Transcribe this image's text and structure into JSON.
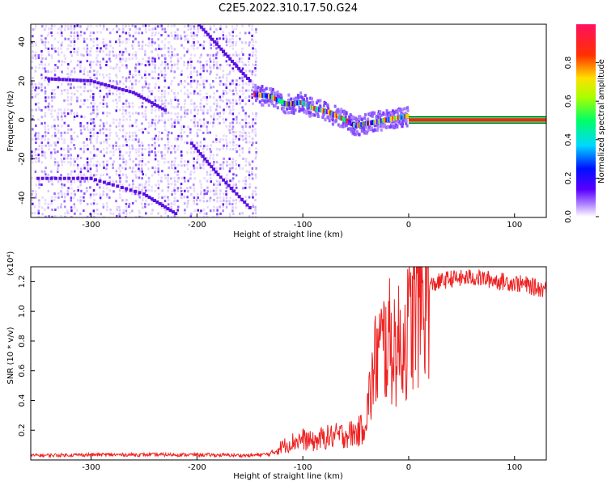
{
  "title": "C2E5.2022.310.17.50.G24",
  "chart_data": [
    {
      "type": "heatmap",
      "xlabel": "Height of straight line (km)",
      "ylabel": "Frequency (Hz)",
      "xlim": [
        -357,
        130
      ],
      "ylim": [
        -50,
        49
      ],
      "xticks": [
        "-300",
        "-200",
        "-100",
        "0",
        "100"
      ],
      "yticks": [
        "-40",
        "-20",
        "0",
        "20",
        "40"
      ],
      "colorbar": {
        "label": "Normalized spectral amplitude",
        "range": [
          0,
          1
        ],
        "ticks": [
          "0.0",
          "0.2",
          "0.4",
          "0.6",
          "0.8"
        ],
        "colormap": [
          "#ffffff",
          "#6a00ff",
          "#0000ff",
          "#00d8ff",
          "#00ff60",
          "#c8ff00",
          "#ffd000",
          "#ff2000",
          "#ff1060"
        ]
      },
      "features": {
        "background_noise_region_km": [
          -357,
          -145
        ],
        "signal_track": [
          {
            "x": -145,
            "y": 13
          },
          {
            "x": -130,
            "y": 12
          },
          {
            "x": -115,
            "y": 8
          },
          {
            "x": -100,
            "y": 9
          },
          {
            "x": -90,
            "y": 6
          },
          {
            "x": -75,
            "y": 4
          },
          {
            "x": -60,
            "y": 0
          },
          {
            "x": -50,
            "y": -3
          },
          {
            "x": -40,
            "y": -2
          },
          {
            "x": -30,
            "y": -1
          },
          {
            "x": -20,
            "y": 0
          },
          {
            "x": -10,
            "y": 1
          },
          {
            "x": 0,
            "y": 2
          }
        ],
        "constant_line_y_hz": 0,
        "constant_line_from_km": 0
      }
    },
    {
      "type": "line",
      "xlabel": "Height of straight line (km)",
      "ylabel": "SNR (10 * v/v)",
      "y_multiplier": "(x10⁴)",
      "xlim": [
        -357,
        130
      ],
      "ylim": [
        0,
        1.3
      ],
      "xticks": [
        "-300",
        "-200",
        "-100",
        "0",
        "100"
      ],
      "yticks": [
        "0.2",
        "0.4",
        "0.6",
        "0.8",
        "1.0",
        "1.2"
      ],
      "color": "#ee2222",
      "series": [
        {
          "x": [
            -357,
            -300,
            -250,
            -200,
            -150,
            -130,
            -120,
            -110,
            -100,
            -90,
            -80,
            -70,
            -60,
            -50,
            -45,
            -40,
            -35,
            -30,
            -25,
            -20,
            -15,
            -10,
            -5,
            0,
            5,
            10,
            15,
            20,
            30,
            40,
            50,
            60,
            70,
            80,
            90,
            100,
            110,
            120,
            130
          ],
          "y": [
            0.03,
            0.035,
            0.035,
            0.035,
            0.03,
            0.04,
            0.09,
            0.12,
            0.14,
            0.12,
            0.15,
            0.16,
            0.17,
            0.18,
            0.2,
            0.3,
            0.5,
            0.72,
            0.75,
            0.8,
            0.78,
            0.76,
            0.8,
            0.88,
            0.98,
            1.05,
            1.12,
            1.17,
            1.2,
            1.22,
            1.22,
            1.23,
            1.22,
            1.21,
            1.2,
            1.19,
            1.18,
            1.16,
            1.15
          ]
        }
      ]
    }
  ]
}
